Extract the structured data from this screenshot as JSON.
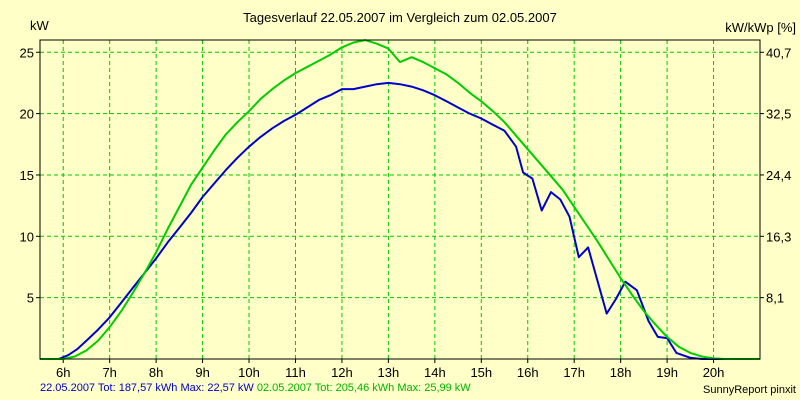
{
  "chart_data": {
    "type": "line",
    "title": "Tagesverlauf 22.05.2007 im Vergleich zum 02.05.2007",
    "ylabel_left": "kW",
    "ylabel_right": "kW/kWp [%]",
    "x_ticks": [
      "6h",
      "7h",
      "8h",
      "9h",
      "10h",
      "11h",
      "12h",
      "13h",
      "14h",
      "15h",
      "16h",
      "17h",
      "18h",
      "19h",
      "20h"
    ],
    "x_tick_values": [
      6,
      7,
      8,
      9,
      10,
      11,
      12,
      13,
      14,
      15,
      16,
      17,
      18,
      19,
      20
    ],
    "xlim": [
      5.5,
      21.0
    ],
    "y_ticks": [
      5,
      10,
      15,
      20,
      25
    ],
    "y_ticks_right": [
      "8,1",
      "16,3",
      "24,4",
      "32,5",
      "40,7"
    ],
    "ylim": [
      0,
      26.0
    ],
    "grid": true,
    "series": [
      {
        "name": "22.05.2007",
        "color": "#0000cc",
        "summary": "22.05.2007 Tot: 187,57 kWh Max: 22,57 kW",
        "x": [
          5.5,
          5.9,
          6.1,
          6.3,
          6.5,
          6.75,
          7.0,
          7.25,
          7.5,
          7.75,
          8.0,
          8.25,
          8.5,
          8.75,
          9.0,
          9.25,
          9.5,
          9.75,
          10.0,
          10.25,
          10.5,
          10.75,
          11.0,
          11.25,
          11.5,
          11.75,
          12.0,
          12.25,
          12.5,
          12.75,
          13.0,
          13.25,
          13.5,
          13.75,
          14.0,
          14.25,
          14.5,
          14.75,
          15.0,
          15.25,
          15.5,
          15.75,
          15.9,
          16.1,
          16.3,
          16.5,
          16.7,
          16.9,
          17.1,
          17.3,
          17.5,
          17.7,
          17.9,
          18.1,
          18.35,
          18.6,
          18.8,
          19.0,
          19.2,
          19.5,
          19.75,
          20.0,
          20.3,
          20.6,
          20.9
        ],
        "values": [
          0,
          0,
          0.3,
          0.8,
          1.5,
          2.4,
          3.4,
          4.6,
          5.8,
          7.0,
          8.2,
          9.5,
          10.7,
          11.9,
          13.2,
          14.3,
          15.4,
          16.4,
          17.3,
          18.1,
          18.8,
          19.4,
          19.9,
          20.5,
          21.1,
          21.5,
          22.0,
          22.0,
          22.2,
          22.4,
          22.5,
          22.4,
          22.2,
          21.9,
          21.5,
          21.0,
          20.5,
          20.0,
          19.6,
          19.1,
          18.6,
          17.3,
          15.2,
          14.7,
          12.1,
          13.6,
          13.0,
          11.6,
          8.3,
          9.1,
          6.4,
          3.7,
          4.9,
          6.3,
          5.6,
          3.1,
          1.8,
          1.7,
          0.5,
          0.1,
          0,
          0,
          0,
          0,
          0
        ]
      },
      {
        "name": "02.05.2007",
        "color": "#00cc00",
        "summary": "02.05.2007 Tot: 205,46 kWh Max: 25,99 kW",
        "x": [
          5.5,
          6.0,
          6.25,
          6.5,
          6.75,
          7.0,
          7.25,
          7.5,
          7.75,
          8.0,
          8.25,
          8.5,
          8.75,
          9.0,
          9.25,
          9.5,
          9.75,
          10.0,
          10.25,
          10.5,
          10.75,
          11.0,
          11.25,
          11.5,
          11.75,
          12.0,
          12.25,
          12.5,
          12.75,
          13.0,
          13.25,
          13.5,
          13.75,
          14.0,
          14.25,
          14.5,
          14.75,
          15.0,
          15.25,
          15.5,
          15.75,
          16.0,
          16.25,
          16.5,
          16.75,
          17.0,
          17.25,
          17.5,
          17.75,
          18.0,
          18.25,
          18.5,
          18.75,
          19.0,
          19.25,
          19.5,
          19.75,
          20.0,
          20.25,
          20.5,
          20.75,
          21.0
        ],
        "values": [
          0,
          0,
          0.2,
          0.7,
          1.5,
          2.6,
          3.9,
          5.4,
          7.0,
          8.7,
          10.6,
          12.4,
          14.2,
          15.6,
          17.0,
          18.3,
          19.3,
          20.2,
          21.2,
          22.0,
          22.7,
          23.3,
          23.8,
          24.3,
          24.8,
          25.4,
          25.8,
          25.99,
          25.7,
          25.3,
          24.2,
          24.6,
          24.2,
          23.7,
          23.2,
          22.5,
          21.7,
          21.0,
          20.2,
          19.3,
          18.2,
          17.1,
          16.0,
          14.9,
          13.8,
          12.4,
          11.0,
          9.6,
          8.1,
          6.6,
          5.2,
          3.9,
          2.8,
          1.8,
          1.0,
          0.5,
          0.2,
          0.05,
          0,
          0,
          0,
          0
        ]
      }
    ]
  },
  "credit": "SunnyReport pinxit"
}
